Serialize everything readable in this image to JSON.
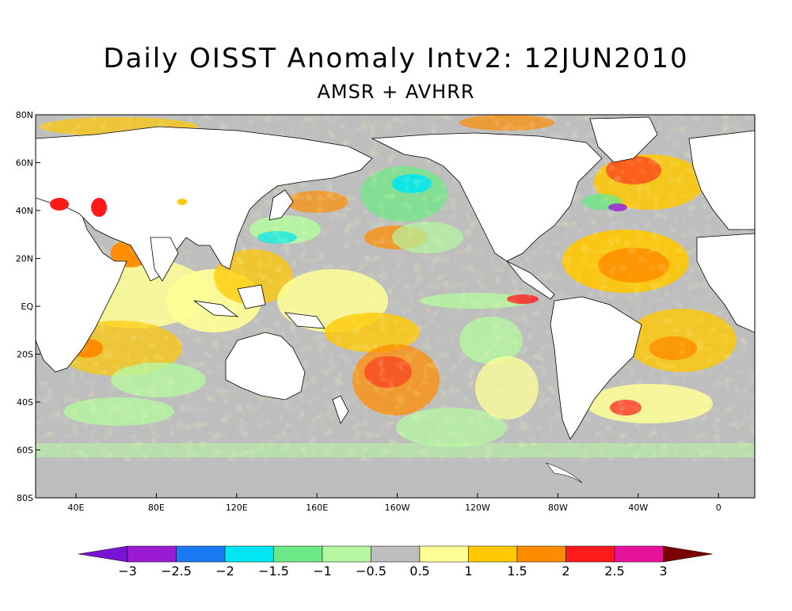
{
  "title": "Daily OISST Anomaly Intv2: 12JUN2010",
  "subtitle": "AMSR + AVHRR",
  "lat_labels": [
    "80N",
    "60N",
    "40N",
    "20N",
    "EQ",
    "20S",
    "40S",
    "60S",
    "80S"
  ],
  "lon_labels": [
    "40E",
    "80E",
    "120E",
    "160E",
    "160W",
    "120W",
    "80W",
    "40W",
    "0"
  ],
  "colorbar": {
    "labels": [
      "−3",
      "−2.5",
      "−2",
      "−1.5",
      "−1",
      "−0.5",
      "0.5",
      "1",
      "1.5",
      "2",
      "2.5",
      "3"
    ],
    "under_color": "#7b13d6",
    "over_color": "#7a0000",
    "colors": [
      "#9b1ad6",
      "#1a78f0",
      "#00e6f0",
      "#6ce886",
      "#b4f7a0",
      "#bebebe",
      "#ffff96",
      "#ffc800",
      "#ff8c00",
      "#ff1a1a",
      "#e6129a"
    ]
  },
  "palette": {
    "land": "#ffffff",
    "ice": "#bebebe",
    "coast": "#000000"
  }
}
